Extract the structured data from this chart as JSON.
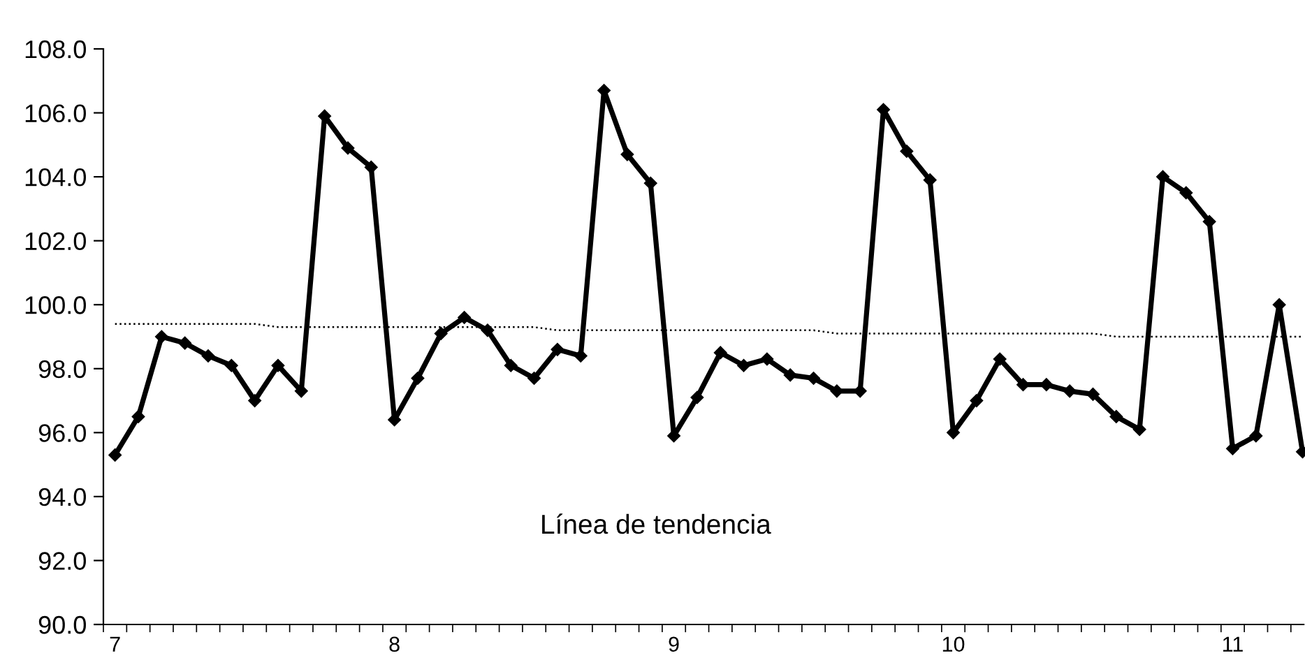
{
  "chart_data": {
    "type": "line",
    "categories": [
      "7",
      null,
      null,
      null,
      null,
      null,
      null,
      null,
      null,
      null,
      null,
      null,
      "8",
      null,
      null,
      null,
      null,
      null,
      null,
      null,
      null,
      null,
      null,
      null,
      "9",
      null,
      null,
      null,
      null,
      null,
      null,
      null,
      null,
      null,
      null,
      null,
      "10",
      null,
      null,
      null,
      null,
      null,
      null,
      null,
      null,
      null,
      null,
      null,
      "11",
      null,
      null,
      null
    ],
    "series": [
      {
        "color": "#000000",
        "marker": "diamond",
        "line_style": "solid",
        "values": [
          95.3,
          96.5,
          99.0,
          98.8,
          98.4,
          98.1,
          97.0,
          98.1,
          97.3,
          105.9,
          104.9,
          104.3,
          96.4,
          97.7,
          99.1,
          99.6,
          99.2,
          98.1,
          97.7,
          98.6,
          98.4,
          106.7,
          104.7,
          103.8,
          95.9,
          97.1,
          98.5,
          98.1,
          98.3,
          97.8,
          97.7,
          97.3,
          97.3,
          106.1,
          104.8,
          103.9,
          96.0,
          97.0,
          98.3,
          97.5,
          97.5,
          97.3,
          97.2,
          96.5,
          96.1,
          104.0,
          103.5,
          102.6,
          95.5,
          95.9,
          100.0,
          95.4
        ]
      },
      {
        "color": "#000000",
        "marker": "none",
        "line_style": "dotted",
        "values": [
          99.4,
          99.4,
          99.4,
          99.4,
          99.4,
          99.4,
          99.4,
          99.3,
          99.3,
          99.3,
          99.3,
          99.3,
          99.3,
          99.3,
          99.3,
          99.3,
          99.3,
          99.3,
          99.3,
          99.2,
          99.2,
          99.2,
          99.2,
          99.2,
          99.2,
          99.2,
          99.2,
          99.2,
          99.2,
          99.2,
          99.2,
          99.1,
          99.1,
          99.1,
          99.1,
          99.1,
          99.1,
          99.1,
          99.1,
          99.1,
          99.1,
          99.1,
          99.1,
          99.0,
          99.0,
          99.0,
          99.0,
          99.0,
          99.0,
          99.0,
          99.0,
          99.0
        ]
      }
    ],
    "ylim": [
      90,
      108
    ],
    "yticks": [
      {
        "value": 90,
        "label": "90.0"
      },
      {
        "value": 92,
        "label": "92.0"
      },
      {
        "value": 94,
        "label": "94.0"
      },
      {
        "value": 96,
        "label": "96.0"
      },
      {
        "value": 98,
        "label": "98.0"
      },
      {
        "value": 100,
        "label": "100.0"
      },
      {
        "value": 102,
        "label": "102.0"
      },
      {
        "value": 104,
        "label": "104.0"
      },
      {
        "value": 106,
        "label": "106.0"
      },
      {
        "value": 108,
        "label": "108.0"
      }
    ],
    "annotations": [
      "Línea de tendencia"
    ],
    "grid": false
  }
}
